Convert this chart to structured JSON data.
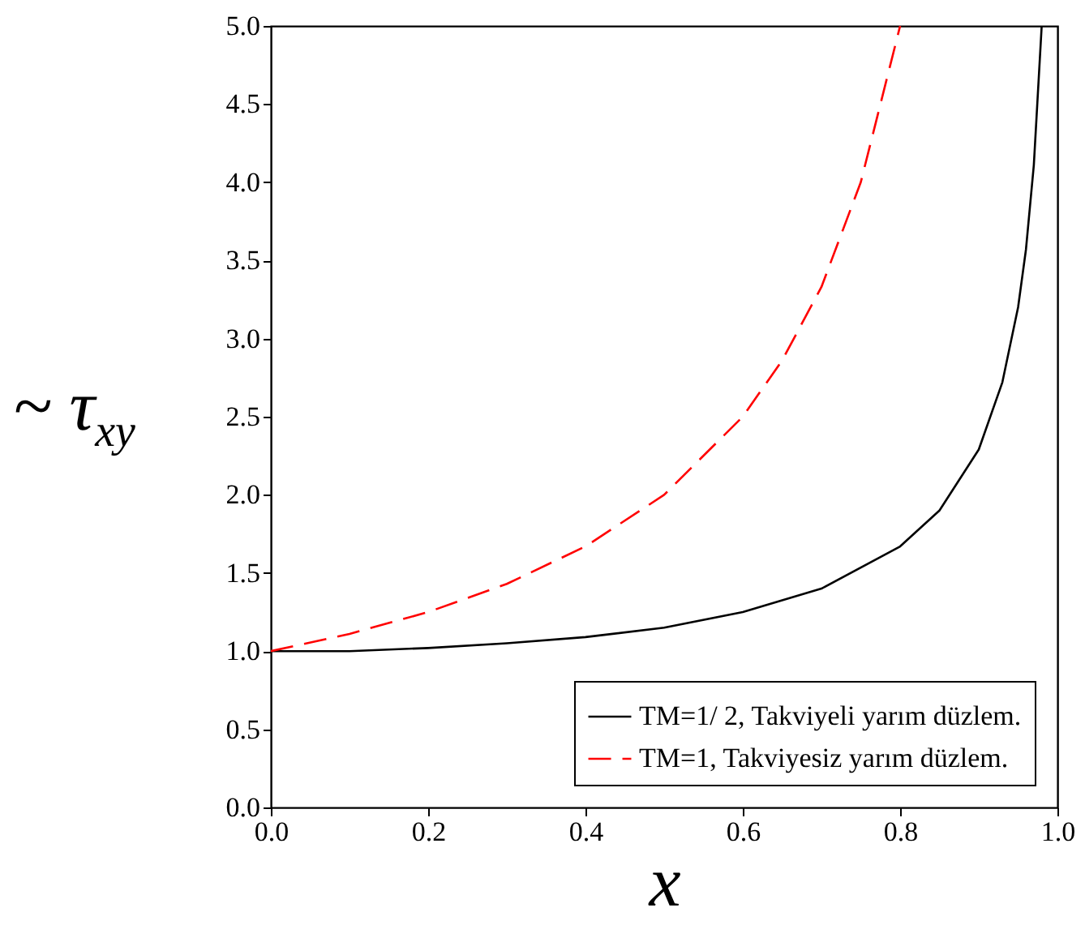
{
  "chart_data": {
    "type": "line",
    "xlabel": "x",
    "ylabel": "~ τ$_{xy}$",
    "xlim": [
      0,
      1
    ],
    "ylim": [
      0,
      5
    ],
    "xticks": [
      {
        "value": 0,
        "label": "0.0"
      },
      {
        "value": 0.2,
        "label": "0.2"
      },
      {
        "value": 0.4,
        "label": "0.4"
      },
      {
        "value": 0.6,
        "label": "0.6"
      },
      {
        "value": 0.8,
        "label": "0.8"
      },
      {
        "value": 1,
        "label": "1.0"
      }
    ],
    "yticks": [
      {
        "value": 0,
        "label": "0.0"
      },
      {
        "value": 0.5,
        "label": "0.5"
      },
      {
        "value": 1,
        "label": "1.0"
      },
      {
        "value": 1.5,
        "label": "1.5"
      },
      {
        "value": 2,
        "label": "2.0"
      },
      {
        "value": 2.5,
        "label": "2.5"
      },
      {
        "value": 3,
        "label": "3.0"
      },
      {
        "value": 3.5,
        "label": "3.5"
      },
      {
        "value": 4,
        "label": "4.0"
      },
      {
        "value": 4.5,
        "label": "4.5"
      },
      {
        "value": 5,
        "label": "5.0"
      }
    ],
    "grid": false,
    "legend": "bottom right",
    "marker": "none",
    "series": [
      {
        "name": "TM=1/ 2, Takviyeli yarım düzlem.",
        "color": "#000000",
        "line_style": "solid",
        "x": [
          0,
          0.1,
          0.2,
          0.3,
          0.4,
          0.5,
          0.6,
          0.7,
          0.8,
          0.85,
          0.9,
          0.93,
          0.95,
          0.96,
          0.97,
          0.98
        ],
        "values": [
          1.0,
          1.0,
          1.02,
          1.05,
          1.09,
          1.15,
          1.25,
          1.4,
          1.67,
          1.9,
          2.29,
          2.72,
          3.2,
          3.57,
          4.11,
          5.0
        ]
      },
      {
        "name": "TM=1, Takviyesiz yarım düzlem.",
        "color": "#ff0000",
        "line_style": "dashed",
        "x": [
          0,
          0.1,
          0.2,
          0.3,
          0.4,
          0.5,
          0.6,
          0.65,
          0.7,
          0.75,
          0.8
        ],
        "values": [
          1.0,
          1.11,
          1.25,
          1.43,
          1.67,
          2.0,
          2.5,
          2.86,
          3.33,
          4.0,
          5.0
        ]
      }
    ]
  }
}
